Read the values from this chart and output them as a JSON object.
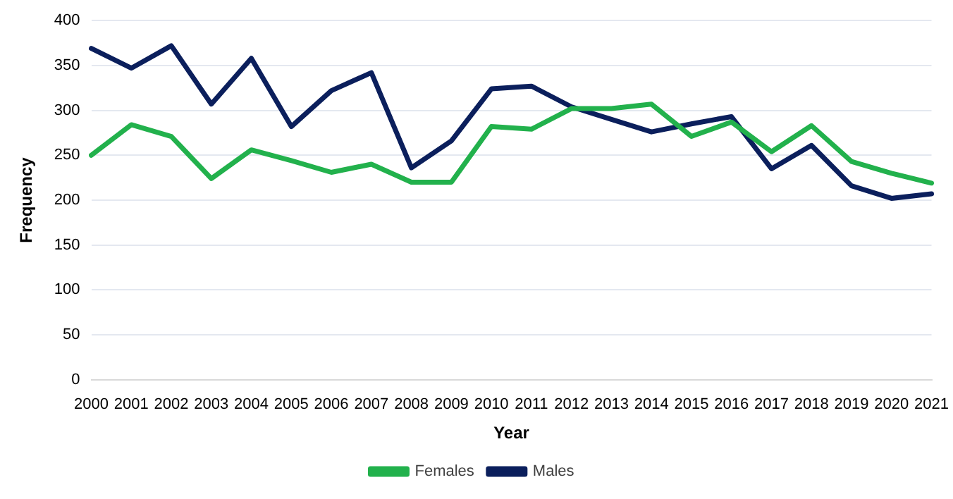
{
  "chart_data": {
    "type": "line",
    "xlabel": "Year",
    "ylabel": "Frequency",
    "categories": [
      "2000",
      "2001",
      "2002",
      "2003",
      "2004",
      "2005",
      "2006",
      "2007",
      "2008",
      "2009",
      "2010",
      "2011",
      "2012",
      "2013",
      "2014",
      "2015",
      "2016",
      "2017",
      "2018",
      "2019",
      "2020",
      "2021"
    ],
    "series": [
      {
        "name": "Females",
        "color": "#22b14c",
        "values": [
          250,
          284,
          271,
          224,
          256,
          244,
          231,
          240,
          220,
          220,
          282,
          279,
          302,
          302,
          307,
          271,
          287,
          254,
          283,
          243,
          230,
          219
        ]
      },
      {
        "name": "Males",
        "color": "#0b1f5c",
        "values": [
          369,
          347,
          372,
          307,
          358,
          282,
          322,
          342,
          236,
          266,
          324,
          327,
          304,
          290,
          276,
          285,
          293,
          235,
          261,
          216,
          202,
          207
        ]
      }
    ],
    "ylim": [
      0,
      400
    ],
    "yticks": [
      0,
      50,
      100,
      150,
      200,
      250,
      300,
      350,
      400
    ],
    "grid": "y",
    "legend": "bottom",
    "marker": "none",
    "line_style": "solid"
  }
}
